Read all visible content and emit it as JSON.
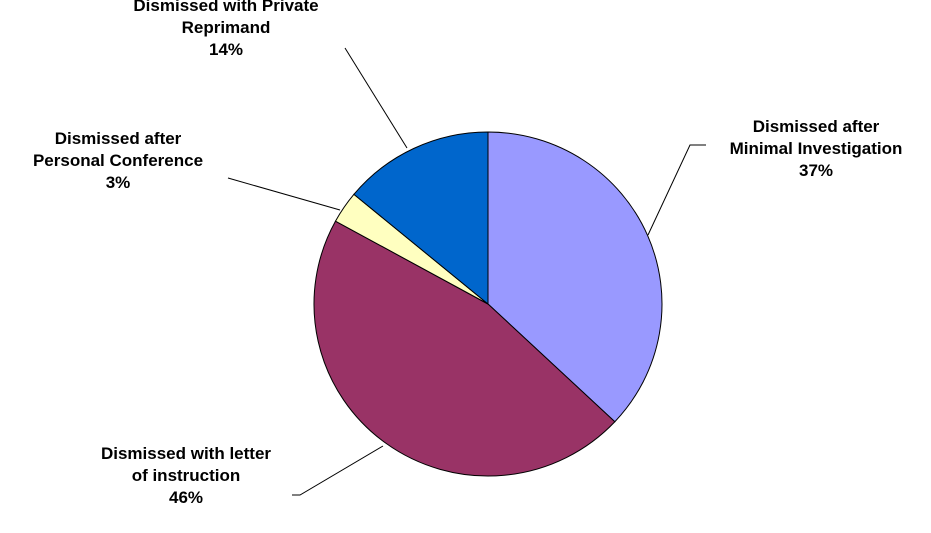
{
  "chart_data": {
    "type": "pie",
    "slices": [
      {
        "label_lines": [
          "Dismissed after",
          "Minimal Investigation"
        ],
        "pct_label": "37%",
        "value": 37,
        "color": "#9999ff"
      },
      {
        "label_lines": [
          "Dismissed with letter",
          "of instruction"
        ],
        "pct_label": "46%",
        "value": 46,
        "color": "#993366"
      },
      {
        "label_lines": [
          "Dismissed after",
          "Personal Conference"
        ],
        "pct_label": "3%",
        "value": 3,
        "color": "#ffffc0"
      },
      {
        "label_lines": [
          "Dismissed with Private",
          "Reprimand"
        ],
        "pct_label": "14%",
        "value": 14,
        "color": "#0066cc"
      }
    ]
  }
}
